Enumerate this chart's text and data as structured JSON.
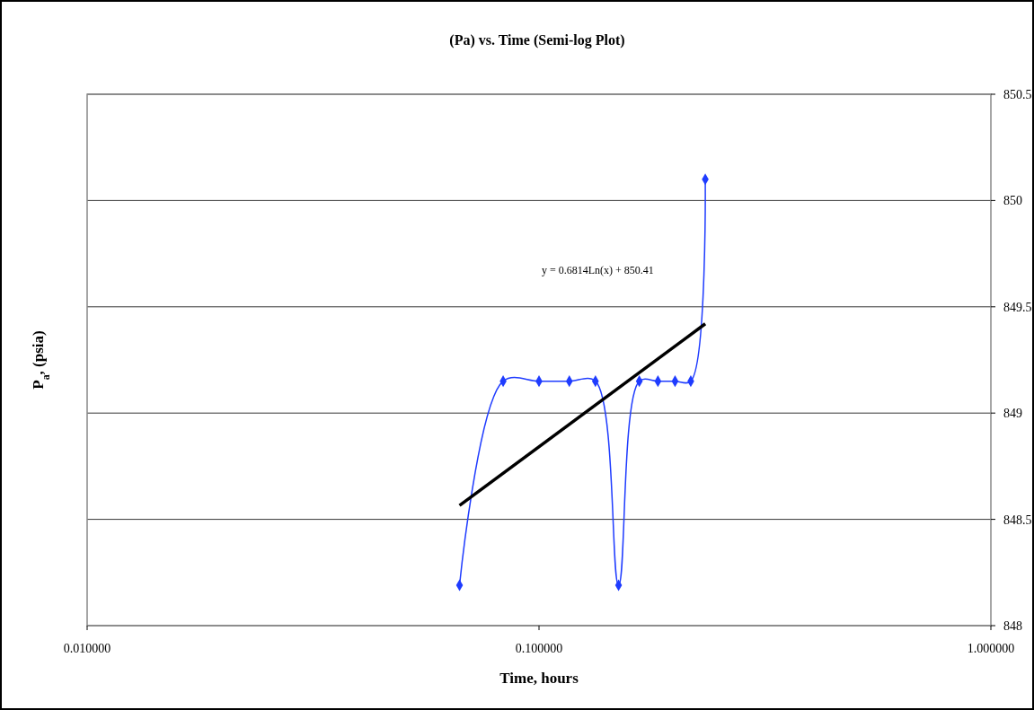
{
  "chart_data": {
    "type": "line",
    "title": "(Pa) vs. Time (Semi-log Plot)",
    "xlabel": "Time, hours",
    "ylabel": "P$_{a}$, (psia)",
    "log": "x",
    "grid": "y",
    "xlim": [
      0.01,
      1
    ],
    "xticks": [
      {
        "value": 0.01,
        "label": "0.010000"
      },
      {
        "value": 0.1,
        "label": "0.100000"
      },
      {
        "value": 1,
        "label": "1.000000"
      }
    ],
    "ylim": [
      848,
      850.5
    ],
    "yticks": [
      848,
      848.5,
      849,
      849.5,
      850,
      850.5
    ],
    "annotations": [
      "y = 0.6814Ln(x) + 850.41"
    ],
    "series": [
      {
        "color": "#1f3cff",
        "marker": "diamond",
        "x": [
          0.0667,
          0.0833,
          0.1,
          0.1167,
          0.1333,
          0.15,
          0.1667,
          0.1833,
          0.2,
          0.2167,
          0.2333
        ],
        "values": [
          848.19,
          849.15,
          849.15,
          849.15,
          849.15,
          848.19,
          849.15,
          849.15,
          849.15,
          849.15,
          850.1
        ]
      },
      {
        "color": "#000000",
        "marker": "none",
        "x": [
          0.0667,
          0.2333
        ],
        "values": [
          848.565,
          849.42
        ]
      }
    ]
  }
}
